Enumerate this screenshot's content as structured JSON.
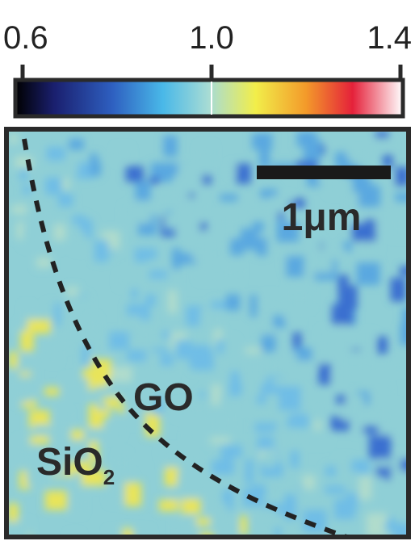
{
  "colorbar": {
    "lim": [
      0.6,
      1.4
    ],
    "ticks": [
      {
        "value": 0.6,
        "label": "0.6"
      },
      {
        "value": 1,
        "label": "1.0"
      },
      {
        "value": 1.4,
        "label": "1.4"
      }
    ]
  },
  "map": {
    "scale_bar": "1μm",
    "region_1": "GO",
    "region_2": {
      "text": "SiO",
      "subscript": "2"
    }
  }
}
